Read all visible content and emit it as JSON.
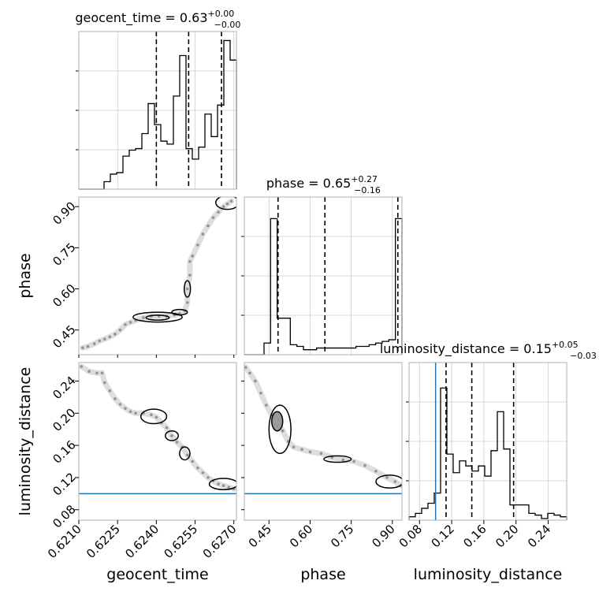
{
  "chart_data": {
    "type": "corner",
    "parameters": [
      "geocent_time",
      "phase",
      "luminosity_distance"
    ],
    "truths": {
      "luminosity_distance": 0.1
    },
    "truth_color": "#1f77b4",
    "titles": {
      "geocent_time": {
        "prefix": "geocent_time = ",
        "value": "0.63",
        "upper": "+0.00",
        "lower": "−0.00"
      },
      "phase": {
        "prefix": "phase = ",
        "value": "0.65",
        "upper": "+0.27",
        "lower": "−0.16"
      },
      "luminosity_distance": {
        "prefix": "luminosity_distance = ",
        "value": "0.15",
        "upper": "+0.05",
        "lower": "−0.03"
      }
    },
    "xlabels": [
      "geocent_time",
      "phase",
      "luminosity_distance"
    ],
    "ylabels": [
      "phase",
      "luminosity_distance"
    ],
    "ranges": {
      "geocent_time": [
        0.621,
        0.6271
      ],
      "phase": [
        0.36,
        0.935
      ],
      "luminosity_distance": [
        0.067,
        0.263
      ]
    },
    "ticks": {
      "geocent_time": {
        "values": [
          0.621,
          0.6225,
          0.624,
          0.6255,
          0.627
        ],
        "labels": [
          "0.6210",
          "0.6225",
          "0.6240",
          "0.6255",
          "0.6270"
        ]
      },
      "phase": {
        "values": [
          0.45,
          0.6,
          0.75,
          0.9
        ],
        "labels": [
          "0.45",
          "0.60",
          "0.75",
          "0.90"
        ]
      },
      "luminosity_distance": {
        "values": [
          0.08,
          0.12,
          0.16,
          0.2,
          0.24
        ],
        "labels": [
          "0.08",
          "0.12",
          "0.16",
          "0.20",
          "0.24"
        ]
      }
    },
    "hist1d": {
      "geocent_time": {
        "ymax": 1.05,
        "counts": [
          0,
          0,
          0,
          0,
          0.05,
          0.1,
          0.11,
          0.22,
          0.26,
          0.27,
          0.37,
          0.57,
          0.43,
          0.32,
          0.3,
          0.62,
          0.89,
          0.27,
          0.2,
          0.28,
          0.5,
          0.35,
          0.56,
          0.99,
          0.86
        ],
        "quantiles": [
          0.624,
          0.62525,
          0.62652
        ]
      },
      "phase": {
        "ymax": 0.95,
        "counts": [
          0,
          0,
          0,
          0.07,
          0.82,
          0.22,
          0.22,
          0.06,
          0.05,
          0.03,
          0.03,
          0.04,
          0.04,
          0.04,
          0.04,
          0.04,
          0.04,
          0.05,
          0.05,
          0.06,
          0.07,
          0.08,
          0.09,
          0.82
        ],
        "quantiles": [
          0.483,
          0.654,
          0.92
        ]
      },
      "luminosity_distance": {
        "ymax": 0.93,
        "counts": [
          0.02,
          0.04,
          0.07,
          0.1,
          0.16,
          0.78,
          0.39,
          0.28,
          0.35,
          0.32,
          0.29,
          0.32,
          0.26,
          0.41,
          0.64,
          0.42,
          0.09,
          0.09,
          0.09,
          0.04,
          0.03,
          0.01,
          0.04,
          0.03,
          0.02
        ],
        "quantiles": [
          0.113,
          0.145,
          0.197
        ]
      }
    },
    "scatter": {
      "geocent_time_phase": [
        [
          0.62115,
          0.385
        ],
        [
          0.62135,
          0.39
        ],
        [
          0.6216,
          0.4
        ],
        [
          0.6218,
          0.41
        ],
        [
          0.622,
          0.417
        ],
        [
          0.6222,
          0.425
        ],
        [
          0.6224,
          0.435
        ],
        [
          0.6226,
          0.45
        ],
        [
          0.6228,
          0.47
        ],
        [
          0.623,
          0.478
        ],
        [
          0.6232,
          0.485
        ],
        [
          0.6235,
          0.495
        ],
        [
          0.6238,
          0.5
        ],
        [
          0.6241,
          0.5
        ],
        [
          0.6244,
          0.5
        ],
        [
          0.6247,
          0.505
        ],
        [
          0.6249,
          0.51
        ],
        [
          0.6251,
          0.52
        ],
        [
          0.6252,
          0.55
        ],
        [
          0.6252,
          0.6
        ],
        [
          0.6253,
          0.65
        ],
        [
          0.6253,
          0.7
        ],
        [
          0.6254,
          0.72
        ],
        [
          0.6256,
          0.76
        ],
        [
          0.6258,
          0.8
        ],
        [
          0.626,
          0.83
        ],
        [
          0.6262,
          0.86
        ],
        [
          0.6264,
          0.88
        ],
        [
          0.6266,
          0.9
        ],
        [
          0.62675,
          0.91
        ],
        [
          0.6269,
          0.92
        ]
      ],
      "geocent_time_luminosity_distance": [
        [
          0.6211,
          0.258
        ],
        [
          0.6214,
          0.252
        ],
        [
          0.6217,
          0.25
        ],
        [
          0.6219,
          0.25
        ],
        [
          0.622,
          0.238
        ],
        [
          0.6222,
          0.228
        ],
        [
          0.6224,
          0.218
        ],
        [
          0.6226,
          0.211
        ],
        [
          0.6228,
          0.206
        ],
        [
          0.623,
          0.202
        ],
        [
          0.6232,
          0.2
        ],
        [
          0.6235,
          0.2
        ],
        [
          0.6238,
          0.198
        ],
        [
          0.624,
          0.195
        ],
        [
          0.6242,
          0.188
        ],
        [
          0.6244,
          0.182
        ],
        [
          0.6246,
          0.172
        ],
        [
          0.6248,
          0.164
        ],
        [
          0.625,
          0.158
        ],
        [
          0.6252,
          0.148
        ],
        [
          0.6254,
          0.14
        ],
        [
          0.6256,
          0.132
        ],
        [
          0.6258,
          0.126
        ],
        [
          0.626,
          0.12
        ],
        [
          0.6262,
          0.116
        ],
        [
          0.6264,
          0.112
        ],
        [
          0.6266,
          0.11
        ],
        [
          0.6268,
          0.108
        ],
        [
          0.627,
          0.106
        ]
      ],
      "phase_luminosity_distance": [
        [
          0.365,
          0.257
        ],
        [
          0.38,
          0.25
        ],
        [
          0.4,
          0.24
        ],
        [
          0.42,
          0.225
        ],
        [
          0.44,
          0.21
        ],
        [
          0.46,
          0.198
        ],
        [
          0.48,
          0.19
        ],
        [
          0.5,
          0.178
        ],
        [
          0.52,
          0.165
        ],
        [
          0.54,
          0.158
        ],
        [
          0.57,
          0.155
        ],
        [
          0.6,
          0.152
        ],
        [
          0.64,
          0.15
        ],
        [
          0.68,
          0.145
        ],
        [
          0.72,
          0.142
        ],
        [
          0.76,
          0.14
        ],
        [
          0.8,
          0.135
        ],
        [
          0.84,
          0.128
        ],
        [
          0.88,
          0.12
        ],
        [
          0.91,
          0.115
        ],
        [
          0.93,
          0.11
        ]
      ]
    },
    "contours": {
      "geocent_time_phase": [
        {
          "cx": 0.62405,
          "cy": 0.495,
          "rx": 0.00045,
          "ry": 0.009
        },
        {
          "cx": 0.62405,
          "cy": 0.497,
          "rx": 0.00095,
          "ry": 0.018
        },
        {
          "cx": 0.6249,
          "cy": 0.515,
          "rx": 0.0003,
          "ry": 0.01
        },
        {
          "cx": 0.6252,
          "cy": 0.6,
          "rx": 0.00012,
          "ry": 0.03
        },
        {
          "cx": 0.62675,
          "cy": 0.915,
          "rx": 0.00045,
          "ry": 0.025
        }
      ],
      "geocent_time_luminosity_distance": [
        {
          "cx": 0.6239,
          "cy": 0.196,
          "rx": 0.0005,
          "ry": 0.009
        },
        {
          "cx": 0.6246,
          "cy": 0.172,
          "rx": 0.00025,
          "ry": 0.006
        },
        {
          "cx": 0.6251,
          "cy": 0.15,
          "rx": 0.0002,
          "ry": 0.008
        },
        {
          "cx": 0.6266,
          "cy": 0.112,
          "rx": 0.00055,
          "ry": 0.007
        }
      ],
      "phase_luminosity_distance": [
        {
          "cx": 0.48,
          "cy": 0.19,
          "rx": 0.02,
          "ry": 0.012
        },
        {
          "cx": 0.49,
          "cy": 0.18,
          "rx": 0.04,
          "ry": 0.03
        },
        {
          "cx": 0.7,
          "cy": 0.143,
          "rx": 0.05,
          "ry": 0.004
        },
        {
          "cx": 0.89,
          "cy": 0.115,
          "rx": 0.05,
          "ry": 0.008
        }
      ]
    }
  }
}
